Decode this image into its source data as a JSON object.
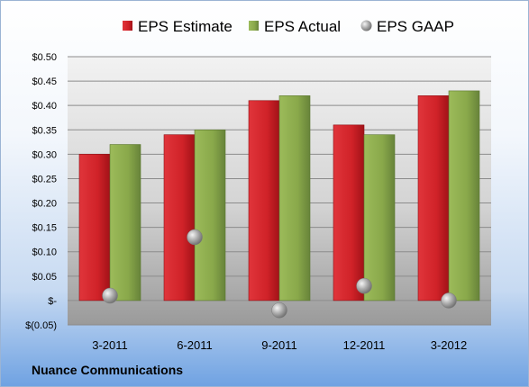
{
  "chart_data": {
    "type": "bar",
    "categories": [
      "3-2011",
      "6-2011",
      "9-2011",
      "12-2011",
      "3-2012"
    ],
    "series": [
      {
        "name": "EPS Estimate",
        "kind": "bar",
        "color": "#cc1f25",
        "values": [
          0.3,
          0.34,
          0.41,
          0.36,
          0.42
        ]
      },
      {
        "name": "EPS Actual",
        "kind": "bar",
        "color": "#8aa84b",
        "values": [
          0.32,
          0.35,
          0.42,
          0.34,
          0.43
        ]
      },
      {
        "name": "EPS GAAP",
        "kind": "marker",
        "color": "#9a9a9a",
        "values": [
          0.01,
          0.13,
          -0.02,
          0.03,
          0.0
        ]
      }
    ],
    "ylim": [
      -0.05,
      0.5
    ],
    "yticks": [
      -0.05,
      0.0,
      0.05,
      0.1,
      0.15,
      0.2,
      0.25,
      0.3,
      0.35,
      0.4,
      0.45,
      0.5
    ],
    "ytick_labels": [
      "$(0.05)",
      "$-",
      "$0.05",
      "$0.10",
      "$0.15",
      "$0.20",
      "$0.25",
      "$0.30",
      "$0.35",
      "$0.40",
      "$0.45",
      "$0.50"
    ],
    "grid": true,
    "legend_position": "top",
    "footer": "Nuance Communications"
  }
}
